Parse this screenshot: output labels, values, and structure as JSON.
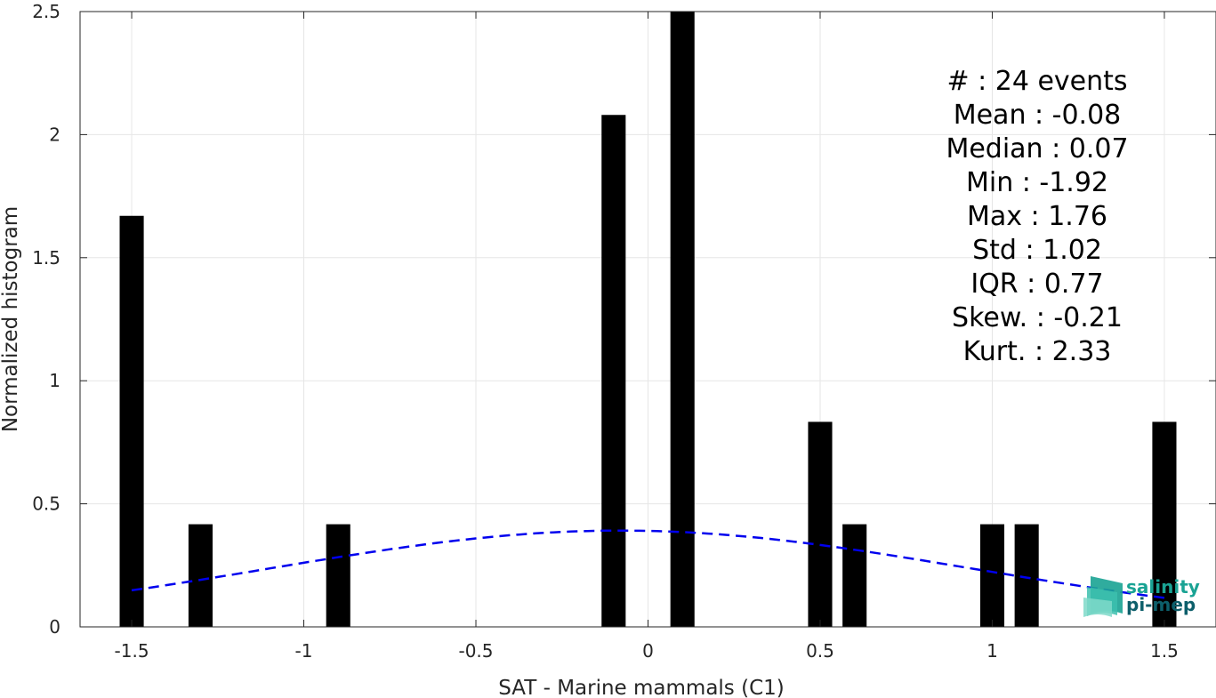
{
  "chart_data": {
    "type": "bar",
    "xlabel": "SAT - Marine mammals (C1)",
    "ylabel": "Normalized histogram",
    "xlim": [
      -1.65,
      1.65
    ],
    "ylim": [
      0,
      2.5
    ],
    "grid": true,
    "xticks": [
      -1.5,
      -1,
      -0.5,
      0,
      0.5,
      1,
      1.5
    ],
    "xtick_labels": [
      "-1.5",
      "-1",
      "-0.5",
      "0",
      "0.5",
      "1",
      "1.5"
    ],
    "yticks": [
      0,
      0.5,
      1,
      1.5,
      2,
      2.5
    ],
    "ytick_labels": [
      "0",
      "0.5",
      "1",
      "1.5",
      "2",
      "2.5"
    ],
    "bar_width": 0.07,
    "bars": [
      {
        "x": -1.5,
        "value": 1.67
      },
      {
        "x": -1.3,
        "value": 0.417
      },
      {
        "x": -0.9,
        "value": 0.417
      },
      {
        "x": -0.1,
        "value": 2.08
      },
      {
        "x": 0.1,
        "value": 2.5
      },
      {
        "x": 0.5,
        "value": 0.833
      },
      {
        "x": 0.6,
        "value": 0.417
      },
      {
        "x": 1.0,
        "value": 0.417
      },
      {
        "x": 1.1,
        "value": 0.417
      },
      {
        "x": 1.5,
        "value": 0.833
      }
    ],
    "fit_curve": {
      "style": "dashed",
      "color": "#0000ee",
      "mean": -0.08,
      "std": 1.02,
      "x_range": [
        -1.5,
        1.5
      ]
    },
    "bar_color": "#000000",
    "stats_text": [
      "#  : 24 events",
      "Mean : -0.08",
      "Median : 0.07",
      "Min : -1.92",
      "Max : 1.76",
      "Std : 1.02",
      "IQR : 0.77",
      "Skew. : -0.21",
      "Kurt. : 2.33"
    ]
  },
  "logo": {
    "line1": "salinity",
    "line2": "pi-mep",
    "colors": {
      "primary": "#1aa394",
      "secondary": "#0d5f6b"
    }
  }
}
